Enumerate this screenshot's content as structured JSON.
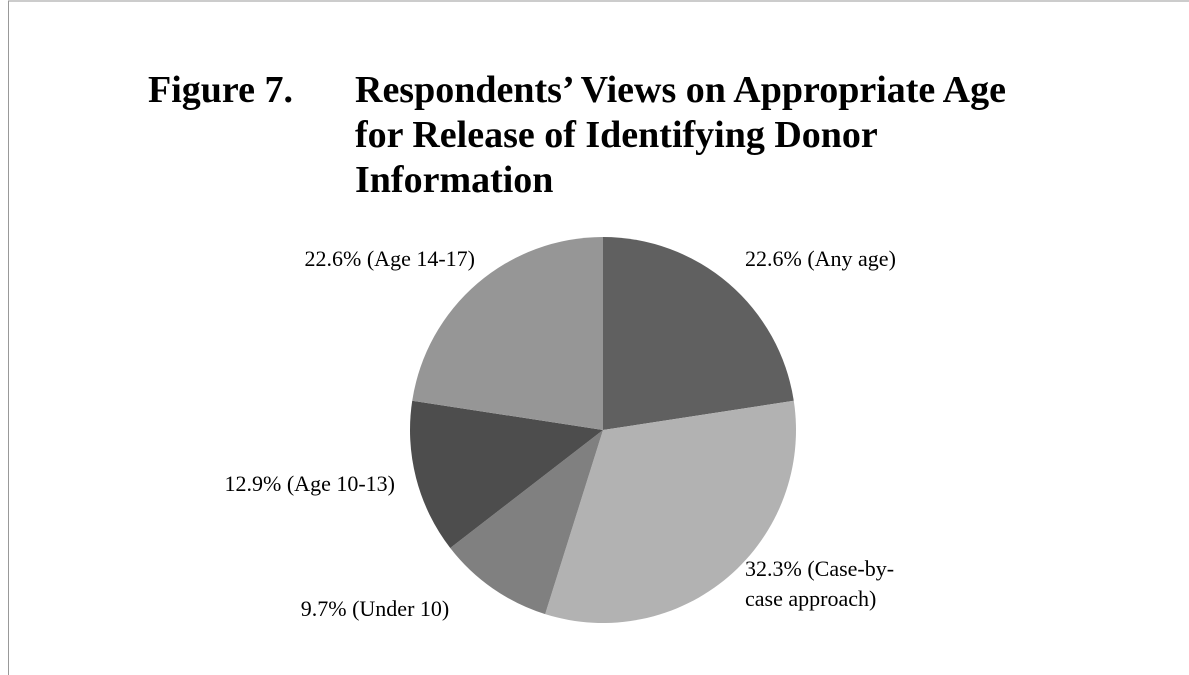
{
  "chart_data": {
    "type": "pie",
    "title_label": "Figure 7.",
    "title": [
      "Respondents’ Views on Appropriate Age",
      "for Release of Identifying  Donor",
      "Information"
    ],
    "values": [
      22.6,
      32.3,
      9.7,
      12.9,
      22.6
    ],
    "value_labels": [
      [
        "22.6% (Any age)"
      ],
      [
        "32.3% (Case-by-",
        "case approach)"
      ],
      [
        "9.7% (Under 10)"
      ],
      [
        "12.9% (Age 10-13)"
      ],
      [
        "22.6% (Age 14-17)"
      ]
    ],
    "colors": [
      "#606060",
      "#b2b2b2",
      "#808080",
      "#4d4d4d",
      "#969696"
    ]
  }
}
